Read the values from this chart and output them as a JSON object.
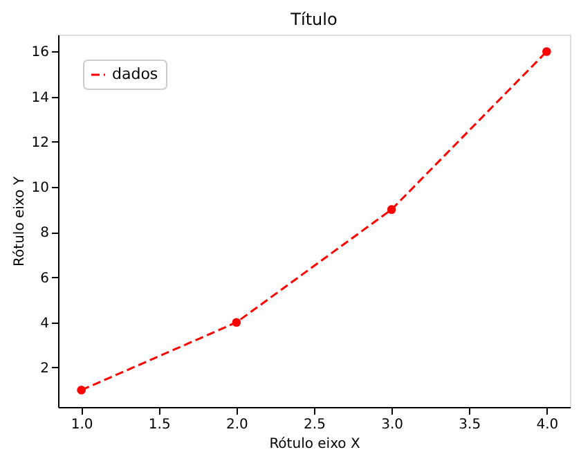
{
  "chart_data": {
    "type": "line",
    "title": "Título",
    "xlabel": "Rótulo eixo X",
    "ylabel": "Rótulo eixo Y",
    "x": [
      1,
      2,
      3,
      4
    ],
    "series": [
      {
        "name": "dados",
        "color": "#ff0000",
        "values": [
          1,
          4,
          9,
          16
        ]
      }
    ],
    "xlim": [
      0.85,
      4.15
    ],
    "ylim": [
      0.25,
      16.75
    ],
    "xticks": [
      {
        "value": 1,
        "label": "1.0"
      },
      {
        "value": 1.5,
        "label": "1.5"
      },
      {
        "value": 2,
        "label": "2.0"
      },
      {
        "value": 2.5,
        "label": "2.5"
      },
      {
        "value": 3,
        "label": "3.0"
      },
      {
        "value": 3.5,
        "label": "3.5"
      },
      {
        "value": 4,
        "label": "4.0"
      }
    ],
    "yticks": [
      2,
      4,
      6,
      8,
      10,
      12,
      14,
      16
    ],
    "marker": "circle",
    "line_style": "dashed",
    "grid": false,
    "legend": "top left"
  }
}
